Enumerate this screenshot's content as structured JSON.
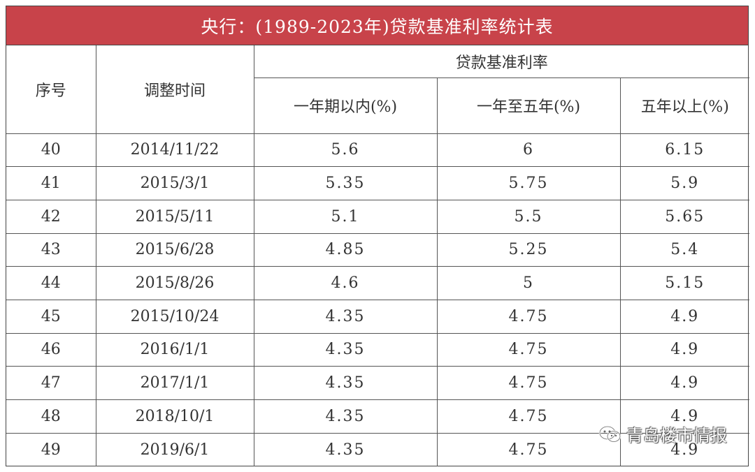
{
  "title": "央行：(1989-2023年)贷款基准利率统计表",
  "headers": {
    "index": "序号",
    "date": "调整时间",
    "group": "贷款基准利率",
    "within_1y": "一年期以内(%)",
    "y1_to_5": "一年至五年(%)",
    "over_5y": "五年以上(%)"
  },
  "rows": [
    {
      "index": "40",
      "date": "2014/11/22",
      "within_1y": "5.6",
      "y1_to_5": "6",
      "over_5y": "6.15"
    },
    {
      "index": "41",
      "date": "2015/3/1",
      "within_1y": "5.35",
      "y1_to_5": "5.75",
      "over_5y": "5.9"
    },
    {
      "index": "42",
      "date": "2015/5/11",
      "within_1y": "5.1",
      "y1_to_5": "5.5",
      "over_5y": "5.65"
    },
    {
      "index": "43",
      "date": "2015/6/28",
      "within_1y": "4.85",
      "y1_to_5": "5.25",
      "over_5y": "5.4"
    },
    {
      "index": "44",
      "date": "2015/8/26",
      "within_1y": "4.6",
      "y1_to_5": "5",
      "over_5y": "5.15"
    },
    {
      "index": "45",
      "date": "2015/10/24",
      "within_1y": "4.35",
      "y1_to_5": "4.75",
      "over_5y": "4.9"
    },
    {
      "index": "46",
      "date": "2016/1/1",
      "within_1y": "4.35",
      "y1_to_5": "4.75",
      "over_5y": "4.9"
    },
    {
      "index": "47",
      "date": "2017/1/1",
      "within_1y": "4.35",
      "y1_to_5": "4.75",
      "over_5y": "4.9"
    },
    {
      "index": "48",
      "date": "2018/10/1",
      "within_1y": "4.35",
      "y1_to_5": "4.75",
      "over_5y": "4.9"
    },
    {
      "index": "49",
      "date": "2019/6/1",
      "within_1y": "4.35",
      "y1_to_5": "4.75",
      "over_5y": "4.9"
    }
  ],
  "watermark": {
    "text": "青岛楼市情报",
    "icon": "wechat-icon"
  },
  "colors": {
    "title_bar": "#c8434a",
    "title_text": "#ffffff",
    "grid": "#555555"
  }
}
